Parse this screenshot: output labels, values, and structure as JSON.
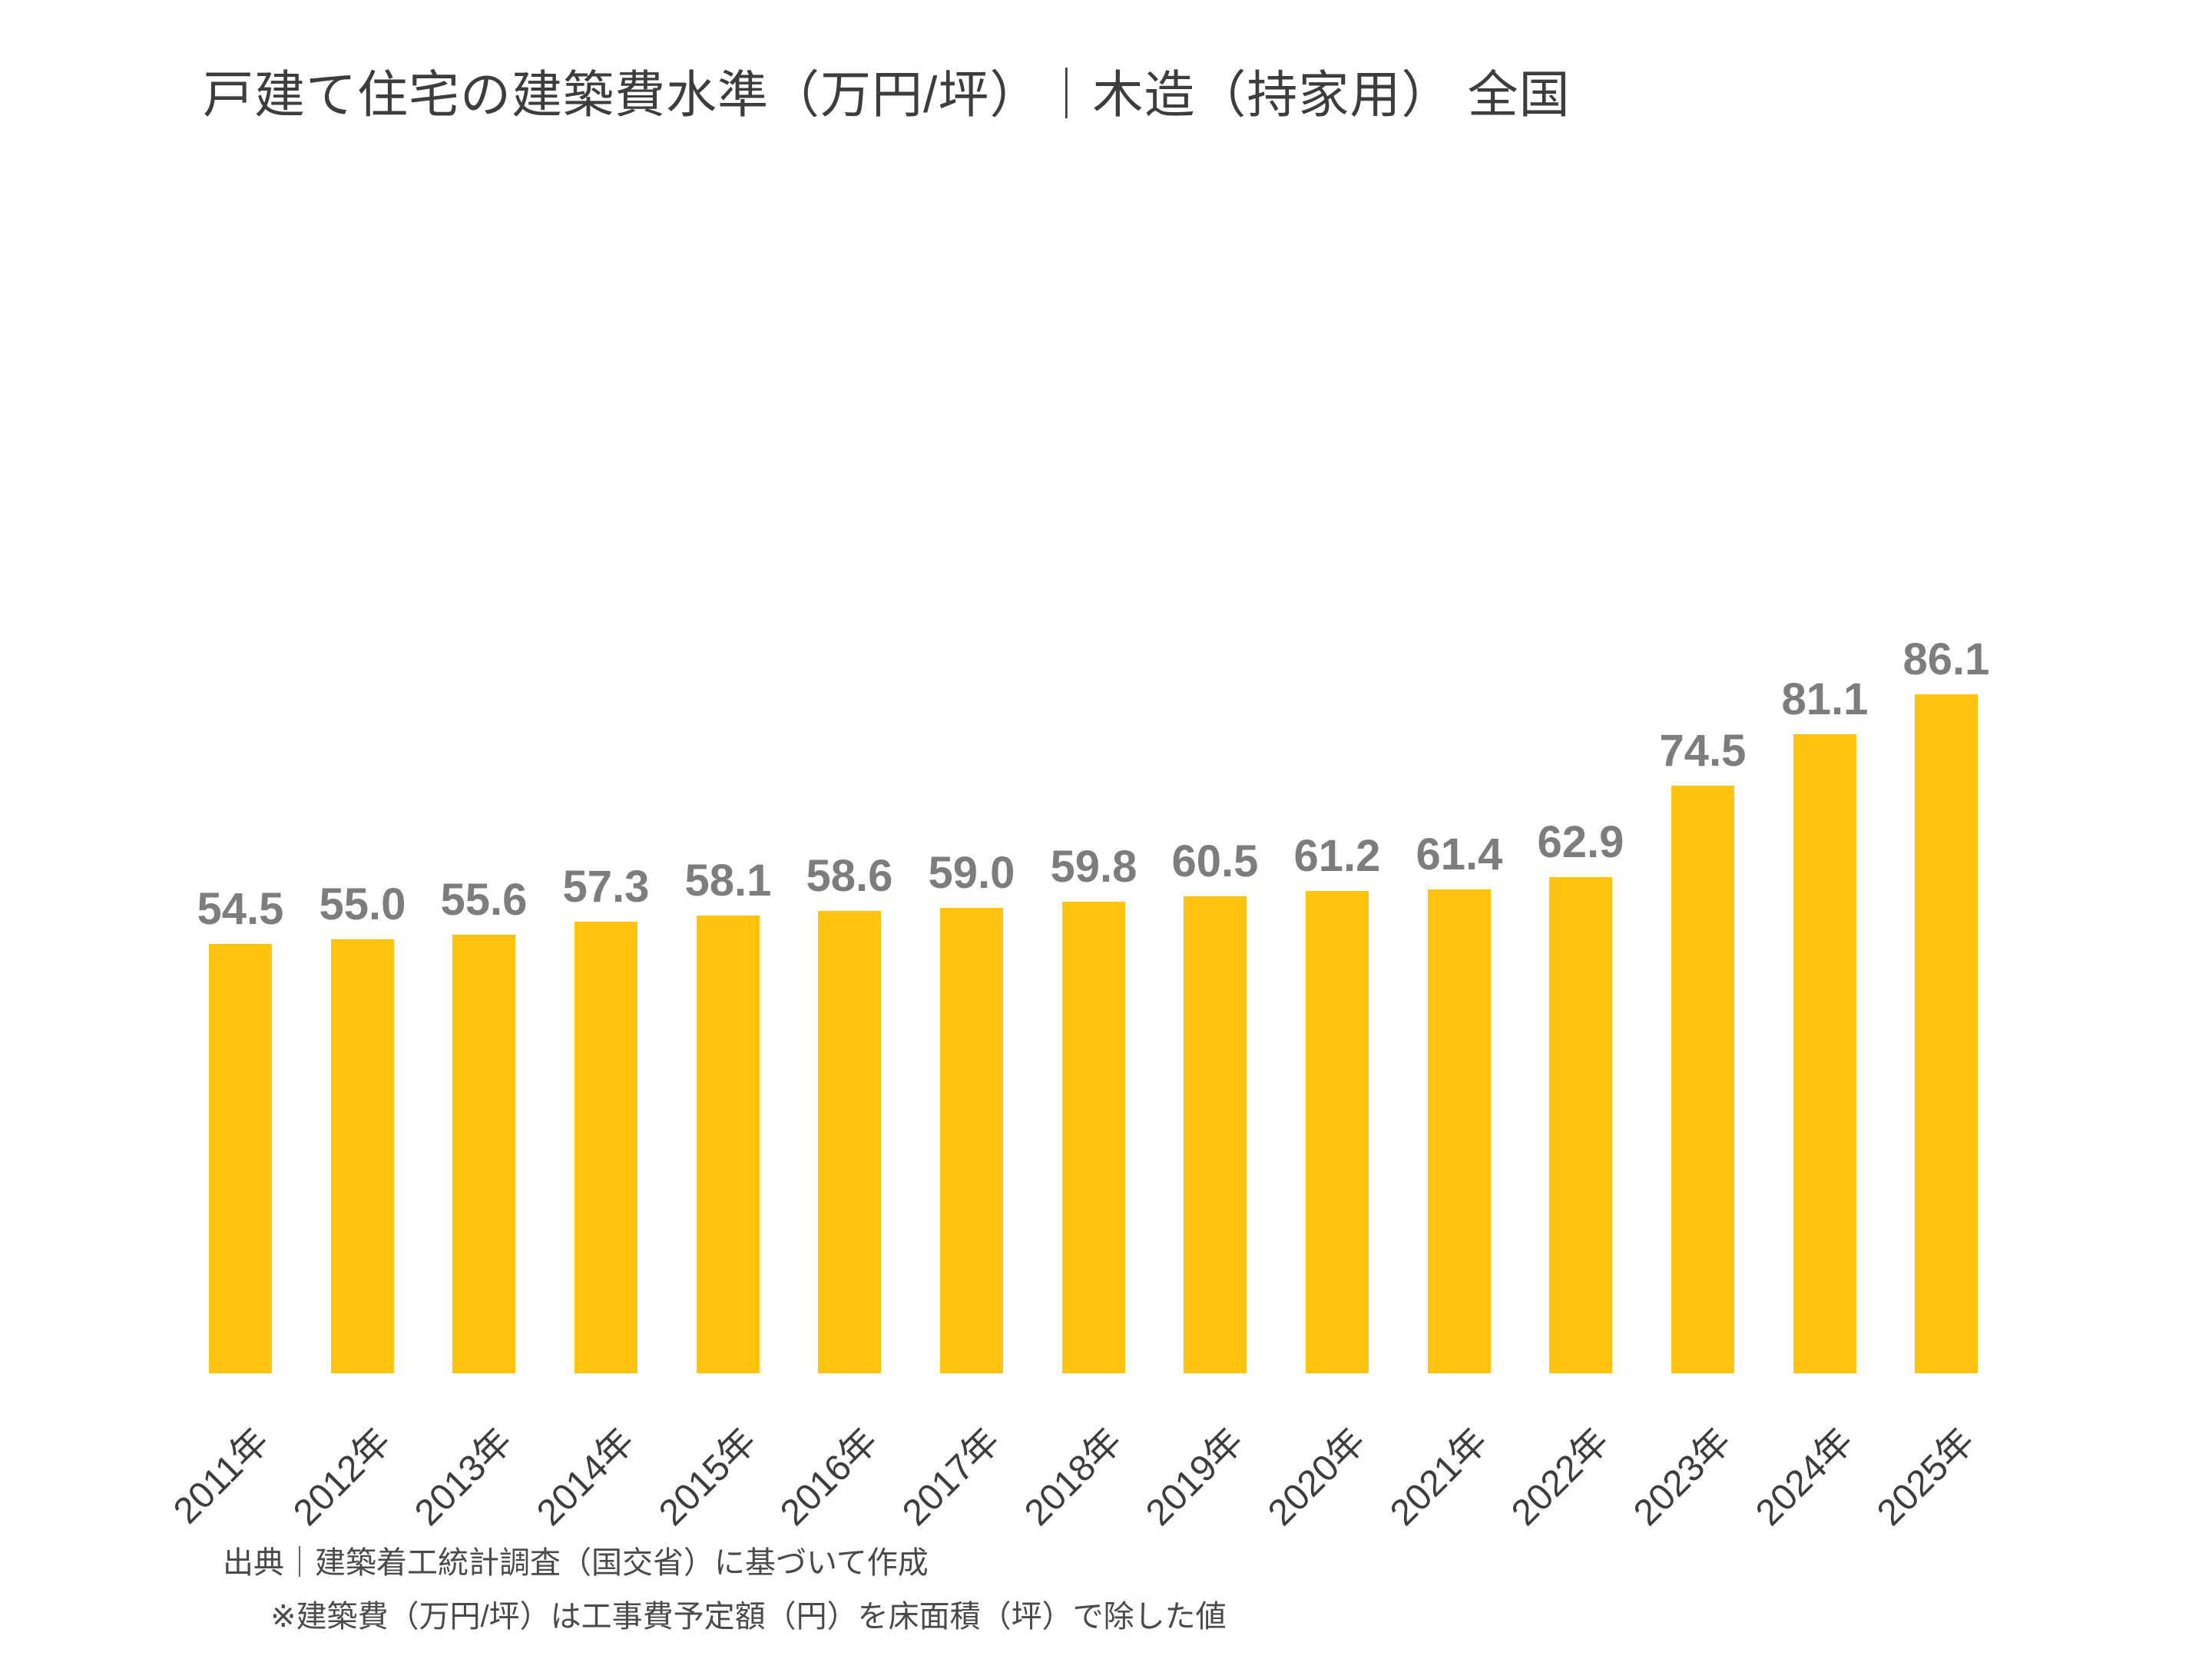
{
  "title": "戸建て住宅の建築費水準（万円/坪）｜木造（持家用） 全国",
  "source": {
    "line1": "出典｜建築着工統計調査（国交省）に基づいて作成",
    "line2": "※建築費（万円/坪）は工事費予定額（円）を床面積（坪）で除した値"
  },
  "colors": {
    "bar": "#ffc20e",
    "value_label": "#7d7d7d",
    "title_text": "#3d3d3d",
    "axis_label": "#3d3d3d",
    "source_text": "#4a4a4a",
    "background": "#ffffff"
  },
  "chart_data": {
    "type": "bar",
    "title": "戸建て住宅の建築費水準（万円/坪）｜木造（持家用） 全国",
    "categories": [
      "2011年",
      "2012年",
      "2013年",
      "2014年",
      "2015年",
      "2016年",
      "2017年",
      "2018年",
      "2019年",
      "2020年",
      "2021年",
      "2022年",
      "2023年",
      "2024年",
      "2025年"
    ],
    "values": [
      54.5,
      55.0,
      55.6,
      57.3,
      58.1,
      58.6,
      59.0,
      59.8,
      60.5,
      61.2,
      61.4,
      62.9,
      74.5,
      81.1,
      86.1
    ],
    "value_label_format": "0.1f",
    "xlabel": "",
    "ylabel": "万円/坪",
    "ylim": [
      0,
      90
    ],
    "grid": false,
    "legend": false,
    "axis_lines": false,
    "value_labels_shown": true,
    "x_label_rotation_deg": 45,
    "bar_color": "#ffc20e"
  }
}
